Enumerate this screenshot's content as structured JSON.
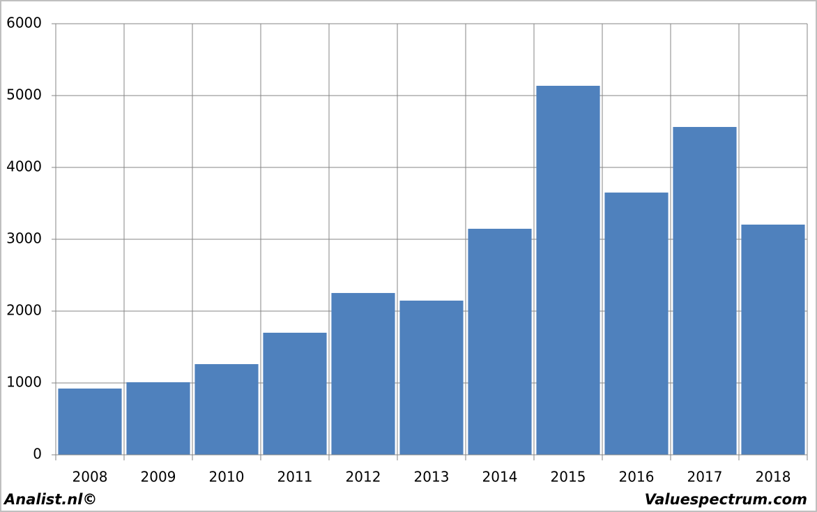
{
  "chart_data": {
    "type": "bar",
    "categories": [
      "2008",
      "2009",
      "2010",
      "2011",
      "2012",
      "2013",
      "2014",
      "2015",
      "2016",
      "2017",
      "2018"
    ],
    "values": [
      922,
      1010,
      1262,
      1699,
      2252,
      2146,
      3146,
      5136,
      3650,
      4563,
      3204
    ],
    "color": "#4f81bd",
    "ylim": [
      0,
      6000
    ],
    "yticks": [
      0,
      1000,
      2000,
      3000,
      4000,
      5000,
      6000
    ],
    "grid": true
  },
  "footer": {
    "left": "Analist.nl©",
    "right": "Valuespectrum.com"
  }
}
